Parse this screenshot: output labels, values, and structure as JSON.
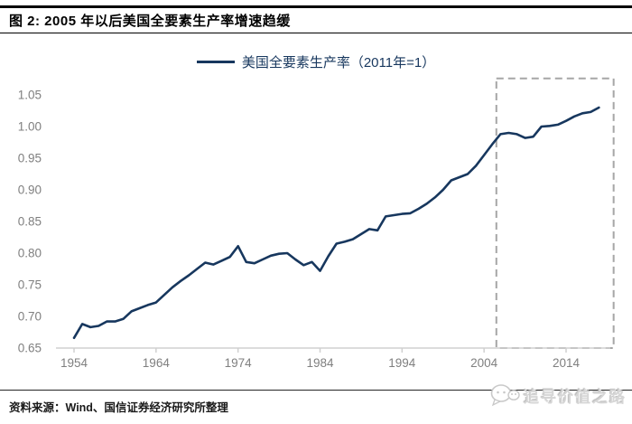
{
  "header": {
    "title": "图 2: 2005 年以后美国全要素生产率增速趋缓"
  },
  "legend": {
    "label": "美国全要素生产率（2011年=1）"
  },
  "source": {
    "text": "资料来源：Wind、国信证券经济研究所整理"
  },
  "watermark": {
    "text": "追寻价值之路"
  },
  "colors": {
    "series_line": "#17375e",
    "axis": "#d0d0d0",
    "tick_label": "#7f7f7f",
    "highlight_box": "#a6a6a6"
  },
  "chart_data": {
    "type": "line",
    "title": "美国全要素生产率（2011年=1）",
    "xlabel": "",
    "ylabel": "",
    "grid": false,
    "legend_position": "top-center",
    "ylim": [
      0.65,
      1.05
    ],
    "yticks": [
      0.65,
      0.7,
      0.75,
      0.8,
      0.85,
      0.9,
      0.95,
      1.0,
      1.05
    ],
    "xticks": [
      1954,
      1964,
      1974,
      1984,
      1994,
      2004,
      2014
    ],
    "x": [
      1954,
      1955,
      1956,
      1957,
      1958,
      1959,
      1960,
      1961,
      1962,
      1963,
      1964,
      1965,
      1966,
      1967,
      1968,
      1969,
      1970,
      1971,
      1972,
      1973,
      1974,
      1975,
      1976,
      1977,
      1978,
      1979,
      1980,
      1981,
      1982,
      1983,
      1984,
      1985,
      1986,
      1987,
      1988,
      1989,
      1990,
      1991,
      1992,
      1993,
      1994,
      1995,
      1996,
      1997,
      1998,
      1999,
      2000,
      2001,
      2002,
      2003,
      2004,
      2005,
      2006,
      2007,
      2008,
      2009,
      2010,
      2011,
      2012,
      2013,
      2014,
      2015,
      2016,
      2017,
      2018
    ],
    "values": [
      0.666,
      0.688,
      0.683,
      0.685,
      0.692,
      0.692,
      0.696,
      0.708,
      0.713,
      0.718,
      0.722,
      0.734,
      0.746,
      0.756,
      0.765,
      0.775,
      0.785,
      0.782,
      0.788,
      0.794,
      0.811,
      0.786,
      0.784,
      0.79,
      0.796,
      0.799,
      0.8,
      0.79,
      0.781,
      0.786,
      0.772,
      0.795,
      0.815,
      0.818,
      0.822,
      0.83,
      0.838,
      0.836,
      0.858,
      0.86,
      0.862,
      0.863,
      0.87,
      0.878,
      0.888,
      0.9,
      0.915,
      0.92,
      0.925,
      0.938,
      0.955,
      0.972,
      0.988,
      0.99,
      0.988,
      0.982,
      0.984,
      1.0,
      1.001,
      1.003,
      1.009,
      1.016,
      1.021,
      1.023,
      1.03
    ],
    "highlight_box": {
      "x0_year": 2005.5,
      "x1_year": 2019.8,
      "y0_value": 0.65,
      "y1_value": 1.076,
      "style": "dashed"
    }
  }
}
